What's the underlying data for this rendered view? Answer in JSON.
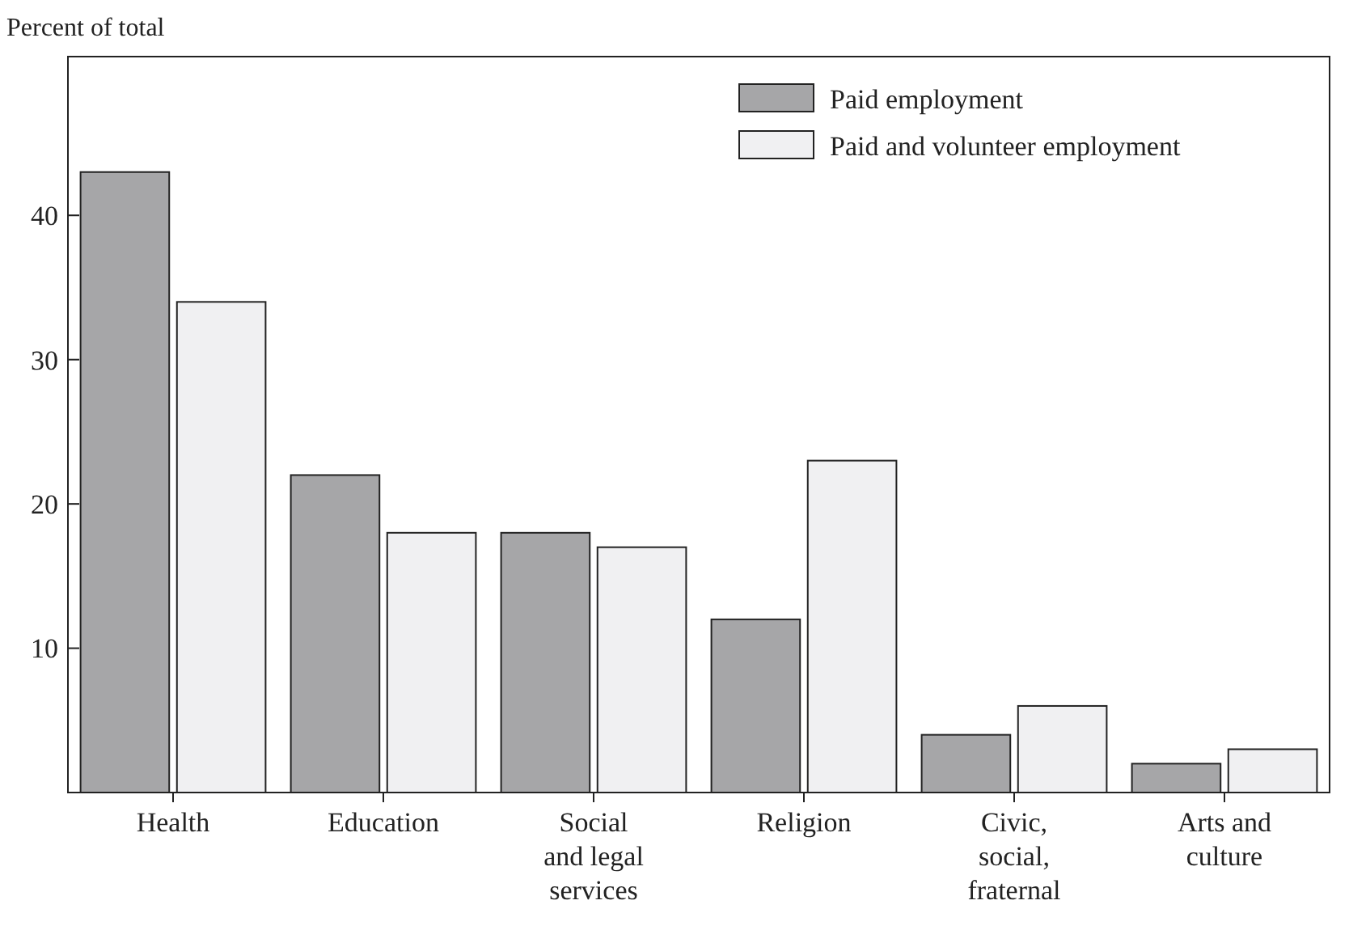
{
  "chart_data": {
    "type": "bar",
    "ylabel": "Percent of total",
    "categories": [
      "Health",
      "Education",
      "Social and legal services",
      "Religion",
      "Civic, social, fraternal",
      "Arts and culture"
    ],
    "series": [
      {
        "name": "Paid employment",
        "color": "#a6a6a8",
        "values": [
          43,
          22,
          18,
          12,
          4,
          2
        ]
      },
      {
        "name": "Paid and volunteer employment",
        "color": "#f0f0f2",
        "values": [
          34,
          18,
          17,
          23,
          6,
          3
        ]
      }
    ],
    "ylim": [
      0,
      51
    ],
    "yticks": [
      10,
      20,
      30,
      40
    ],
    "grid": false,
    "legend": "top right"
  }
}
